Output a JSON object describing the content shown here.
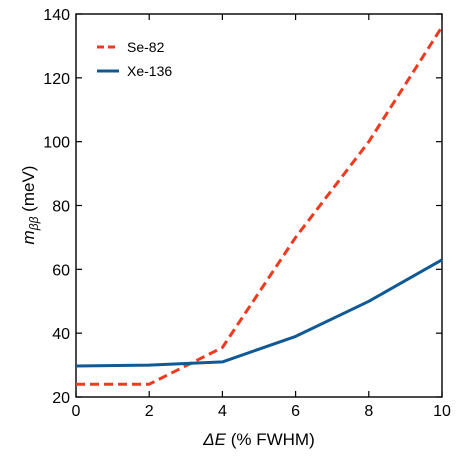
{
  "chart_data": {
    "type": "line",
    "xlabel": {
      "symbol": "ΔE",
      "rest": " (% FWHM)"
    },
    "ylabel": {
      "symbol": "m",
      "subscript": "ββ",
      "rest": " (meV)"
    },
    "xlim": [
      0,
      10
    ],
    "ylim": [
      20,
      140
    ],
    "xticks": [
      0,
      2,
      4,
      6,
      8,
      10
    ],
    "yticks": [
      20,
      40,
      60,
      80,
      100,
      120,
      140
    ],
    "grid": false,
    "legend_position": "top-left",
    "series": [
      {
        "name": "Se-82",
        "color": "#ee3a1e",
        "dash": "dashed",
        "x": [
          0,
          2,
          4,
          6,
          8,
          10
        ],
        "y": [
          24,
          24,
          35.5,
          70,
          100,
          136
        ]
      },
      {
        "name": "Xe-136",
        "color": "#0f5a96",
        "dash": "solid",
        "x": [
          0,
          2,
          4,
          6,
          8,
          10
        ],
        "y": [
          29.7,
          30,
          31,
          39,
          50,
          63
        ]
      }
    ]
  }
}
